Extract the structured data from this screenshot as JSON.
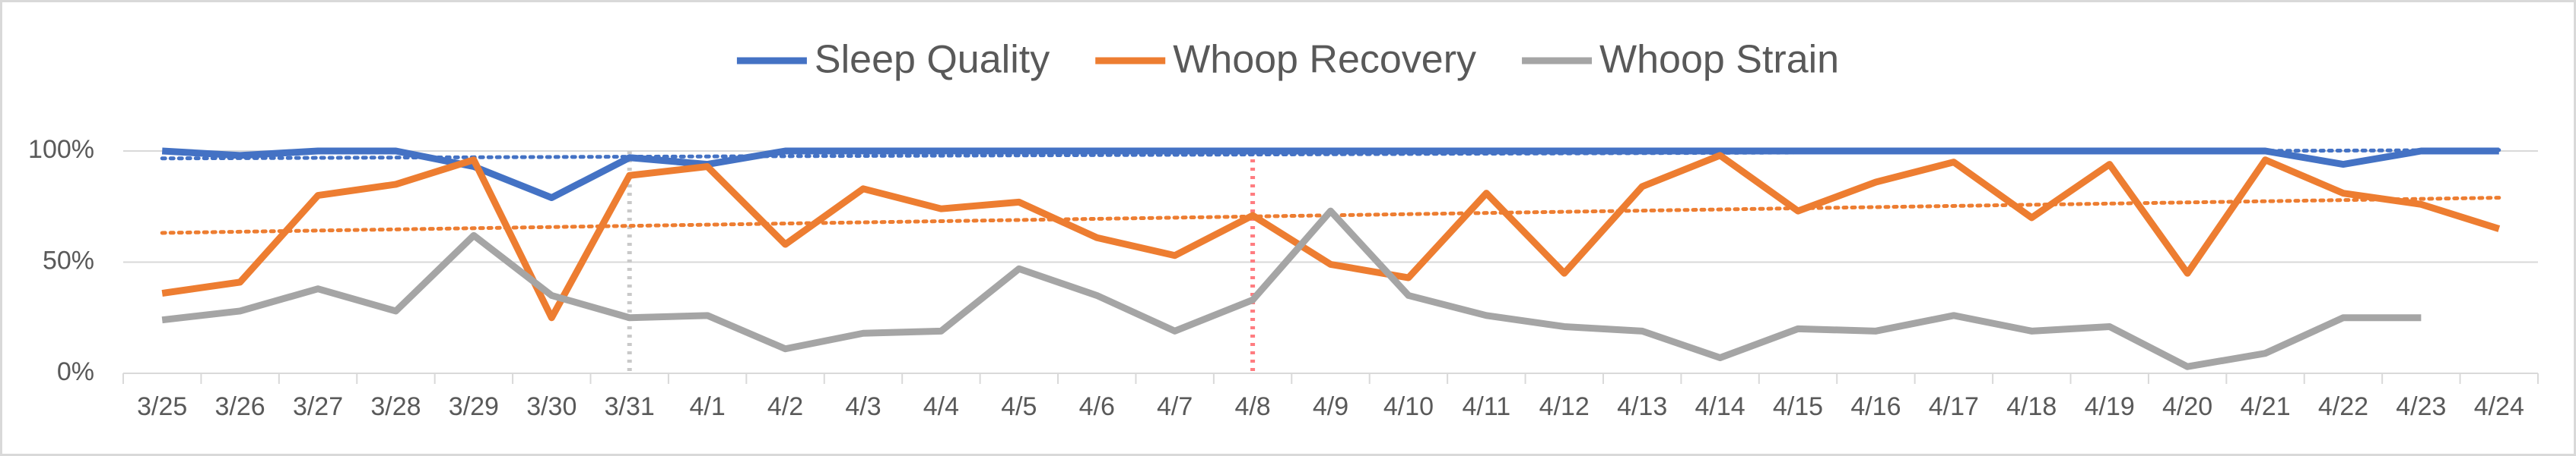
{
  "chart_data": {
    "type": "line",
    "categories": [
      "3/25",
      "3/26",
      "3/27",
      "3/28",
      "3/29",
      "3/30",
      "3/31",
      "4/1",
      "4/2",
      "4/3",
      "4/4",
      "4/5",
      "4/6",
      "4/7",
      "4/8",
      "4/9",
      "4/10",
      "4/11",
      "4/12",
      "4/13",
      "4/14",
      "4/15",
      "4/16",
      "4/17",
      "4/18",
      "4/19",
      "4/20",
      "4/21",
      "4/22",
      "4/23",
      "4/24"
    ],
    "series": [
      {
        "name": "Sleep Quality",
        "color": "#4472c4",
        "trendline": true,
        "values": [
          100,
          98,
          100,
          100,
          93,
          79,
          97,
          94,
          100,
          100,
          100,
          100,
          100,
          100,
          100,
          100,
          100,
          100,
          100,
          100,
          100,
          100,
          100,
          100,
          100,
          100,
          100,
          100,
          94,
          100,
          100
        ]
      },
      {
        "name": "Whoop Recovery",
        "color": "#ed7d31",
        "trendline": true,
        "values": [
          36,
          41,
          80,
          85,
          96,
          25,
          89,
          93,
          58,
          83,
          74,
          77,
          61,
          53,
          71,
          49,
          43,
          81,
          45,
          84,
          98,
          73,
          86,
          95,
          70,
          94,
          45,
          96,
          81,
          76,
          65
        ]
      },
      {
        "name": "Whoop Strain",
        "color": "#a5a5a5",
        "trendline": false,
        "values": [
          24,
          28,
          38,
          28,
          62,
          35,
          25,
          26,
          11,
          18,
          19,
          47,
          35,
          19,
          33,
          73,
          35,
          26,
          21,
          19,
          7,
          20,
          19,
          26,
          19,
          21,
          3,
          9,
          25,
          25,
          null
        ]
      }
    ],
    "ylim": [
      0,
      100
    ],
    "yticks": [
      {
        "value": 0,
        "label": "0%"
      },
      {
        "value": 50,
        "label": "50%"
      },
      {
        "value": 100,
        "label": "100%"
      }
    ],
    "grid": true,
    "legend": "top",
    "reference_lines": [
      {
        "category": "3/31",
        "color": "#c9c9c9"
      },
      {
        "category": "4/8",
        "color": "#ff7c80"
      }
    ]
  }
}
